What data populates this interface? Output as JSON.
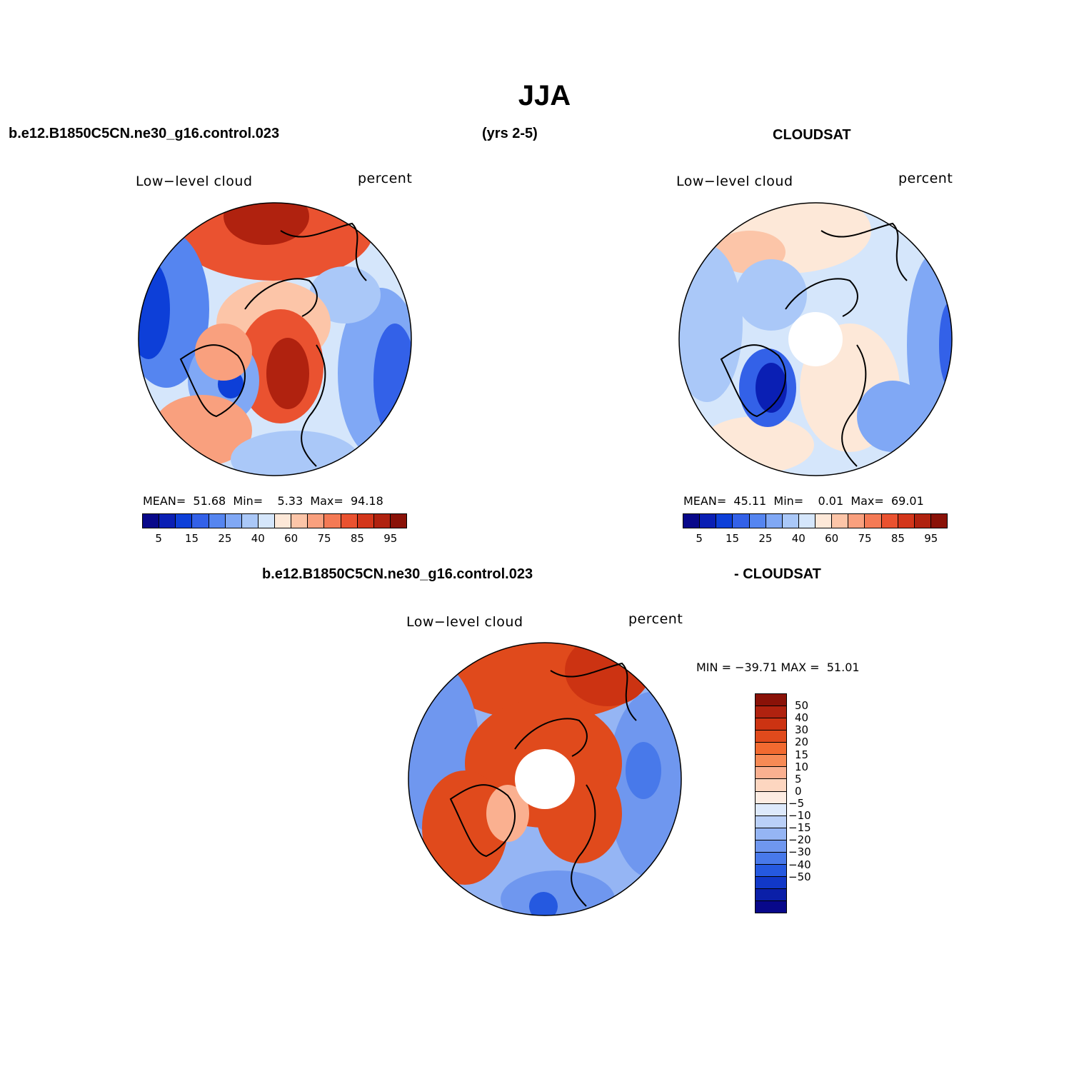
{
  "title": "JJA",
  "header": {
    "case_name": "b.e12.B1850C5CN.ne30_g16.control.023",
    "years": "(yrs 2-5)",
    "obs_name": "CLOUDSAT",
    "diff_case": "b.e12.B1850C5CN.ne30_g16.control.023",
    "diff_obs": "- CLOUDSAT"
  },
  "panels": {
    "model": {
      "variable": "Low−level cloud",
      "units": "percent",
      "stats": "MEAN=  51.68  Min=    5.33  Max=  94.18"
    },
    "obs": {
      "variable": "Low−level cloud",
      "units": "percent",
      "stats": "MEAN=  45.11  Min=    0.01  Max=  69.01"
    },
    "diff": {
      "variable": "Low−level cloud",
      "units": "percent",
      "stats": "MIN = −39.71 MAX =  51.01"
    }
  },
  "colorbar_abs": {
    "colors": [
      "#08088a",
      "#0a1fb4",
      "#0d3fd8",
      "#3361e8",
      "#5585f0",
      "#80a8f5",
      "#aac8f8",
      "#d5e6fb",
      "#fde8d8",
      "#fcc5a8",
      "#f9a07e",
      "#f47a55",
      "#ea5230",
      "#d3361a",
      "#b0220f",
      "#8a1208"
    ],
    "tick_labels": [
      "5",
      "15",
      "25",
      "40",
      "60",
      "75",
      "85",
      "95"
    ]
  },
  "colorbar_diff": {
    "colors": [
      "#8a1208",
      "#b0220f",
      "#cc3312",
      "#e04a1c",
      "#f26a30",
      "#f78a55",
      "#fab090",
      "#fdd6c0",
      "#fdece2",
      "#dde9fb",
      "#bad0f8",
      "#95b5f4",
      "#6f97ef",
      "#4879ea",
      "#2559e0",
      "#1138c8",
      "#0a1fa8",
      "#08088a"
    ],
    "tick_labels": [
      "50",
      "40",
      "30",
      "20",
      "15",
      "10",
      "5",
      "0",
      "−5",
      "−10",
      "−15",
      "−20",
      "−30",
      "−40",
      "−50"
    ]
  }
}
